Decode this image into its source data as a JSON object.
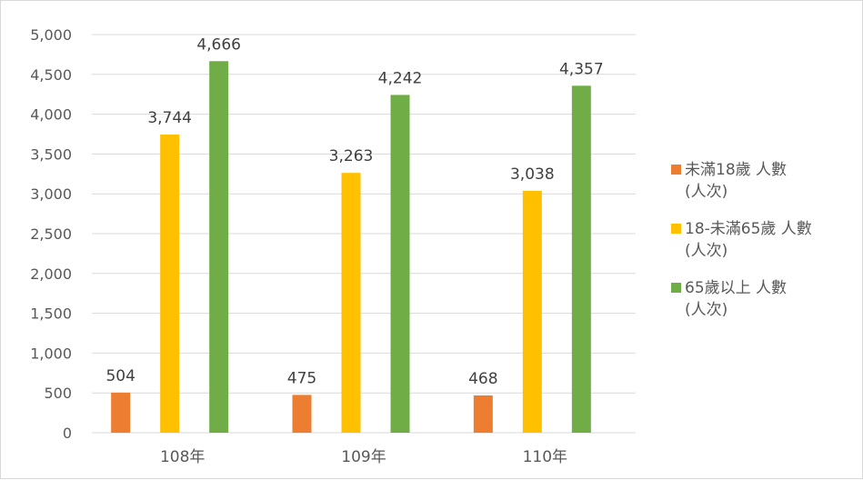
{
  "chart_data": {
    "type": "bar",
    "title": "",
    "xlabel": "",
    "ylabel": "",
    "categories": [
      "108年",
      "109年",
      "110年"
    ],
    "series": [
      {
        "name": "未滿18歲 人數 (人次)",
        "legend_lines": [
          "未滿18歲 人數",
          "(人次)"
        ],
        "color": "#ED7D31",
        "values": [
          504,
          475,
          468
        ]
      },
      {
        "name": "18-未滿65歲 人數 (人次)",
        "legend_lines": [
          "18-未滿65歲 人數",
          "(人次)"
        ],
        "color": "#FFC000",
        "values": [
          3744,
          3263,
          3038
        ]
      },
      {
        "name": "65歲以上 人數 (人次)",
        "legend_lines": [
          "65歲以上 人數",
          "(人次)"
        ],
        "color": "#70AD47",
        "values": [
          4666,
          4242,
          4357
        ]
      }
    ],
    "ylim": [
      0,
      5000
    ],
    "yticks": [
      0,
      500,
      1000,
      1500,
      2000,
      2500,
      3000,
      3500,
      4000,
      4500,
      5000
    ],
    "ytick_labels": [
      "0",
      "500",
      "1,000",
      "1,500",
      "2,000",
      "2,500",
      "3,000",
      "3,500",
      "4,000",
      "4,500",
      "5,000"
    ],
    "data_labels": [
      [
        "504",
        "475",
        "468"
      ],
      [
        "3,744",
        "3,263",
        "3,038"
      ],
      [
        "4,666",
        "4,242",
        "4,357"
      ]
    ],
    "grid": true,
    "legend_position": "right",
    "gridline_color": "#d9d9d9"
  }
}
